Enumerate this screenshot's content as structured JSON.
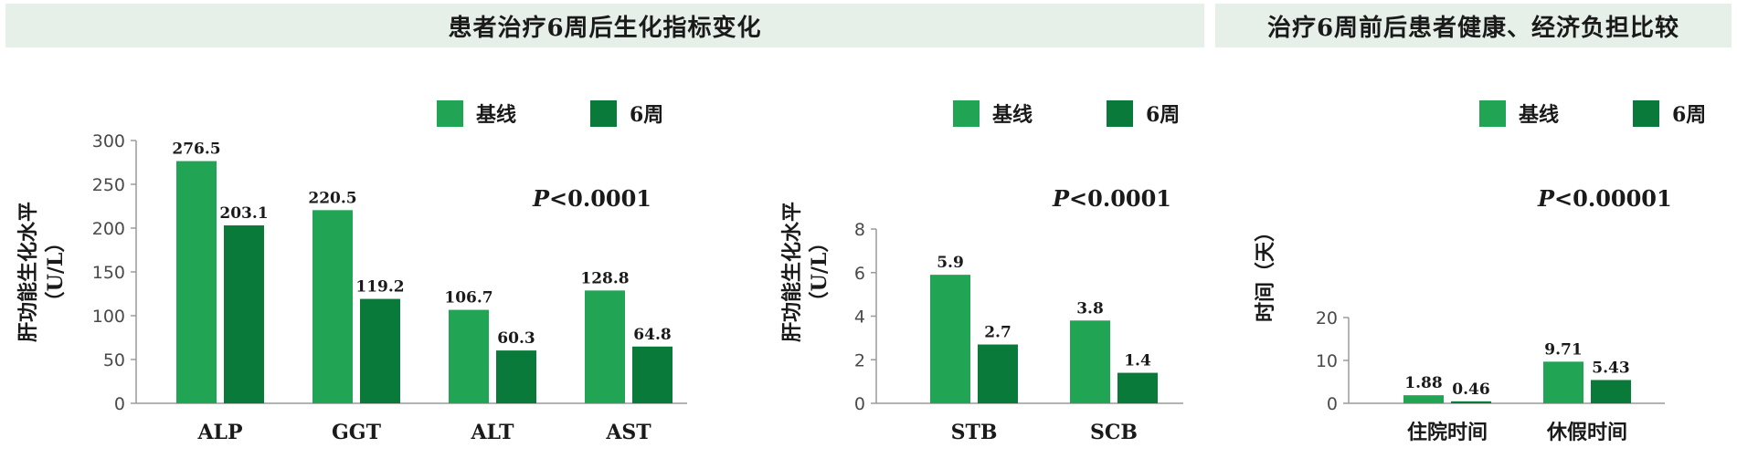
{
  "banners": {
    "left": "患者治疗6周后生化指标变化",
    "right": "治疗6周前后患者健康、经济负担比较"
  },
  "colors": {
    "baseline": "#22a455",
    "week6": "#0a7a3a",
    "banner_bg": "#e6efe8"
  },
  "chart_data": [
    {
      "type": "bar",
      "title": "",
      "categories": [
        "ALP",
        "GGT",
        "ALT",
        "AST"
      ],
      "series": [
        {
          "name": "基线",
          "values": [
            276.5,
            220.5,
            106.7,
            128.8
          ],
          "labels": [
            "276.5",
            "220.5",
            "106.7",
            "128.8"
          ]
        },
        {
          "name": "6周",
          "values": [
            203.1,
            119.2,
            60.3,
            64.8
          ],
          "labels": [
            "203.1",
            "119.2",
            "60.3",
            "64.8"
          ]
        }
      ],
      "ylabel_line1": "肝功能生化水平",
      "ylabel_line2": "（U/L）",
      "ylim": [
        0,
        300
      ],
      "yticks": [
        0,
        50,
        100,
        150,
        200,
        250,
        300
      ],
      "annotation_italic": "P",
      "annotation_rest": "<0.0001",
      "legend": "top-right",
      "grid": false
    },
    {
      "type": "bar",
      "title": "",
      "categories": [
        "STB",
        "SCB"
      ],
      "series": [
        {
          "name": "基线",
          "values": [
            5.9,
            3.8
          ],
          "labels": [
            "5.9",
            "3.8"
          ]
        },
        {
          "name": "6周",
          "values": [
            2.7,
            1.4
          ],
          "labels": [
            "2.7",
            "1.4"
          ]
        }
      ],
      "ylabel_line1": "肝功能生化水平",
      "ylabel_line2": "（U/L）",
      "ylim": [
        0,
        8
      ],
      "yticks": [
        0,
        2,
        4,
        6,
        8
      ],
      "annotation_italic": "P",
      "annotation_rest": "<0.0001",
      "legend": "top-right",
      "grid": false
    },
    {
      "type": "bar",
      "title": "",
      "categories": [
        "住院时间",
        "休假时间"
      ],
      "series": [
        {
          "name": "基线",
          "values": [
            1.88,
            9.71
          ],
          "labels": [
            "1.88",
            "9.71"
          ]
        },
        {
          "name": "6周",
          "values": [
            0.46,
            5.43
          ],
          "labels": [
            "0.46",
            "5.43"
          ]
        }
      ],
      "ylabel_line1": "时间（天）",
      "ylabel_line2": "",
      "ylim": [
        0,
        20
      ],
      "yticks": [
        0,
        10,
        20
      ],
      "annotation_italic": "P",
      "annotation_rest": "<0.00001",
      "legend": "top-right",
      "grid": false
    }
  ]
}
